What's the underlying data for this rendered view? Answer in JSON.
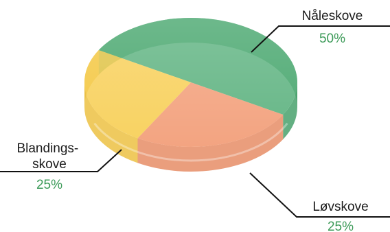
{
  "chart_data": {
    "type": "pie",
    "style": "3d-cylinder",
    "categories": [
      "Nåleskove",
      "Løvskove",
      "Blandings-skove"
    ],
    "values": [
      50,
      25,
      25
    ],
    "value_labels": [
      "50%",
      "25%",
      "25%"
    ],
    "colors": [
      "#3aa164",
      "#f08a5d",
      "#f6c535"
    ],
    "label_color": "#3c9a58"
  }
}
